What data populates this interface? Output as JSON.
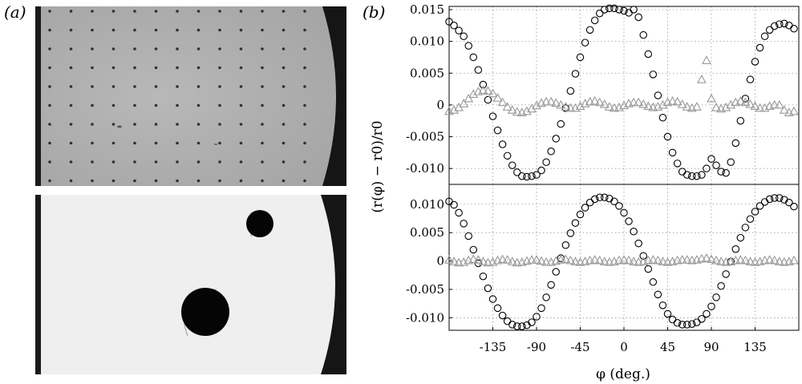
{
  "figure": {
    "panel_a_label": "(a)",
    "panel_b_label": "(b)"
  },
  "panel_a": {
    "top_image": "photograph of a square grid of small dark dots on a grey plate, with a dark curved edge at the right",
    "bottom_image": "photograph of a white plate with one small and one large black disk and a dark curved edge at the right"
  },
  "chart_data": {
    "type": "scatter",
    "ylabel": "(r(φ) − r0)/r0",
    "xlabel": "φ (deg.)",
    "x_ticks": [
      "-135",
      "-90",
      "-45",
      "0",
      "45",
      "90",
      "135"
    ],
    "x_tick_values": [
      -135,
      -90,
      -45,
      0,
      45,
      90,
      135
    ],
    "xlim": [
      -180,
      180
    ],
    "grid": true,
    "subplots": [
      {
        "position": "upper",
        "ylim": [
          -0.0125,
          0.0155
        ],
        "y_ticks": [
          "0.015",
          "0.010",
          "0.005",
          "0",
          "-0.005",
          "-0.010"
        ],
        "y_tick_values": [
          0.015,
          0.01,
          0.005,
          0,
          -0.005,
          -0.01
        ],
        "series": [
          {
            "marker": "circle",
            "color": "#000000",
            "x": [
              -180,
              -175,
              -170,
              -165,
              -160,
              -155,
              -150,
              -145,
              -140,
              -135,
              -130,
              -125,
              -120,
              -115,
              -110,
              -105,
              -100,
              -95,
              -90,
              -85,
              -80,
              -75,
              -70,
              -65,
              -60,
              -55,
              -50,
              -45,
              -40,
              -35,
              -30,
              -25,
              -20,
              -15,
              -10,
              -5,
              0,
              5,
              10,
              15,
              20,
              25,
              30,
              35,
              40,
              45,
              50,
              55,
              60,
              65,
              70,
              75,
              80,
              85,
              90,
              95,
              100,
              105,
              110,
              115,
              120,
              125,
              130,
              135,
              140,
              145,
              150,
              155,
              160,
              165,
              170,
              175
            ],
            "y": [
              0.0131,
              0.0125,
              0.0117,
              0.0108,
              0.0093,
              0.0075,
              0.0055,
              0.0032,
              0.0008,
              -0.0018,
              -0.004,
              -0.0062,
              -0.008,
              -0.0095,
              -0.0106,
              -0.0112,
              -0.0113,
              -0.0112,
              -0.011,
              -0.0103,
              -0.009,
              -0.0073,
              -0.0053,
              -0.003,
              -0.0005,
              0.0022,
              0.0049,
              0.0075,
              0.0098,
              0.0118,
              0.0133,
              0.0144,
              0.015,
              0.0152,
              0.0152,
              0.015,
              0.0148,
              0.0145,
              0.015,
              0.0138,
              0.011,
              0.008,
              0.0048,
              0.0015,
              -0.002,
              -0.005,
              -0.0075,
              -0.0092,
              -0.0105,
              -0.011,
              -0.0112,
              -0.0112,
              -0.011,
              -0.01,
              -0.0085,
              -0.0095,
              -0.0105,
              -0.0107,
              -0.009,
              -0.006,
              -0.0025,
              0.001,
              0.004,
              0.0068,
              0.009,
              0.0108,
              0.0118,
              0.0124,
              0.0127,
              0.0128,
              0.0125,
              0.012
            ]
          },
          {
            "marker": "triangle",
            "color": "#999999",
            "x": [
              -180,
              -175,
              -170,
              -165,
              -160,
              -155,
              -150,
              -145,
              -140,
              -135,
              -130,
              -125,
              -120,
              -115,
              -110,
              -105,
              -100,
              -95,
              -90,
              -85,
              -80,
              -75,
              -70,
              -65,
              -60,
              -55,
              -50,
              -45,
              -40,
              -35,
              -30,
              -25,
              -20,
              -15,
              -10,
              -5,
              0,
              5,
              10,
              15,
              20,
              25,
              30,
              35,
              40,
              45,
              50,
              55,
              60,
              65,
              70,
              75,
              80,
              85,
              90,
              95,
              100,
              105,
              110,
              115,
              120,
              125,
              130,
              135,
              140,
              145,
              150,
              155,
              160,
              165,
              170,
              175
            ],
            "y": [
              -0.001,
              -0.0008,
              -0.0004,
              0.0002,
              0.001,
              0.0017,
              0.0021,
              0.0023,
              0.0022,
              0.0018,
              0.0011,
              0.0004,
              -0.0003,
              -0.0008,
              -0.0011,
              -0.0012,
              -0.001,
              -0.0006,
              -0.0001,
              0.0003,
              0.0005,
              0.0005,
              0.0003,
              0.0,
              -0.0003,
              -0.0005,
              -0.0005,
              -0.0002,
              0.0002,
              0.0005,
              0.0006,
              0.0004,
              0.0001,
              -0.0003,
              -0.0005,
              -0.0004,
              -0.0001,
              0.0002,
              0.0004,
              0.0004,
              0.0001,
              -0.0002,
              -0.0004,
              -0.0003,
              0.0,
              0.0004,
              0.0006,
              0.0005,
              0.0001,
              -0.0003,
              -0.0005,
              -0.0003,
              0.004,
              0.007,
              0.001,
              -0.0004,
              -0.0006,
              -0.0004,
              0.0,
              0.0004,
              0.0006,
              0.0004,
              0.0001,
              -0.0002,
              -0.0005,
              -0.0005,
              -0.0002,
              0.0,
              0.0,
              -0.0008,
              -0.0012,
              -0.001
            ]
          }
        ]
      },
      {
        "position": "lower",
        "ylim": [
          -0.0122,
          0.0135
        ],
        "y_ticks": [
          "0.010",
          "0.005",
          "0",
          "-0.005",
          "-0.010"
        ],
        "y_tick_values": [
          0.01,
          0.005,
          0,
          -0.005,
          -0.01
        ],
        "series": [
          {
            "marker": "circle",
            "color": "#000000",
            "x": [
              -180,
              -175,
              -170,
              -165,
              -160,
              -155,
              -150,
              -145,
              -140,
              -135,
              -130,
              -125,
              -120,
              -115,
              -110,
              -105,
              -100,
              -95,
              -90,
              -85,
              -80,
              -75,
              -70,
              -65,
              -60,
              -55,
              -50,
              -45,
              -40,
              -35,
              -30,
              -25,
              -20,
              -15,
              -10,
              -5,
              0,
              5,
              10,
              15,
              20,
              25,
              30,
              35,
              40,
              45,
              50,
              55,
              60,
              65,
              70,
              75,
              80,
              85,
              90,
              95,
              100,
              105,
              110,
              115,
              120,
              125,
              130,
              135,
              140,
              145,
              150,
              155,
              160,
              165,
              170,
              175
            ],
            "y": [
              0.0105,
              0.0099,
              0.0085,
              0.0066,
              0.0044,
              0.002,
              -0.0004,
              -0.0027,
              -0.0048,
              -0.0067,
              -0.0083,
              -0.0096,
              -0.0106,
              -0.0112,
              -0.0115,
              -0.0115,
              -0.0113,
              -0.0108,
              -0.0098,
              -0.0083,
              -0.0064,
              -0.0042,
              -0.0019,
              0.0005,
              0.0028,
              0.0049,
              0.0067,
              0.0082,
              0.0094,
              0.0103,
              0.0109,
              0.0112,
              0.0112,
              0.011,
              0.0105,
              0.0097,
              0.0085,
              0.007,
              0.0052,
              0.0031,
              0.0009,
              -0.0014,
              -0.0037,
              -0.0059,
              -0.0078,
              -0.0093,
              -0.0103,
              -0.0109,
              -0.0112,
              -0.0112,
              -0.0111,
              -0.0108,
              -0.0102,
              -0.0093,
              -0.008,
              -0.0064,
              -0.0044,
              -0.0023,
              -0.0001,
              0.0021,
              0.0041,
              0.0059,
              0.0074,
              0.0087,
              0.0097,
              0.0104,
              0.0109,
              0.0111,
              0.0111,
              0.0108,
              0.0103,
              0.0096
            ]
          },
          {
            "marker": "triangle",
            "color": "#999999",
            "x": [
              -180,
              -175,
              -170,
              -165,
              -160,
              -155,
              -150,
              -145,
              -140,
              -135,
              -130,
              -125,
              -120,
              -115,
              -110,
              -105,
              -100,
              -95,
              -90,
              -85,
              -80,
              -75,
              -70,
              -65,
              -60,
              -55,
              -50,
              -45,
              -40,
              -35,
              -30,
              -25,
              -20,
              -15,
              -10,
              -5,
              0,
              5,
              10,
              15,
              20,
              25,
              30,
              35,
              40,
              45,
              50,
              55,
              60,
              65,
              70,
              75,
              80,
              85,
              90,
              95,
              100,
              105,
              110,
              115,
              120,
              125,
              130,
              135,
              140,
              145,
              150,
              155,
              160,
              165,
              170,
              175
            ],
            "y": [
              0.0002,
              -0.0001,
              -0.0003,
              -0.0002,
              0.0001,
              0.0003,
              0.0002,
              -0.0001,
              -0.0003,
              -0.0002,
              0.0001,
              0.0003,
              0.0002,
              -0.0001,
              -0.0003,
              -0.0002,
              0.0,
              0.0002,
              0.0002,
              0.0,
              -0.0002,
              -0.0002,
              0.0,
              0.0002,
              0.0003,
              0.0001,
              -0.0001,
              -0.0002,
              -0.0001,
              0.0001,
              0.0002,
              0.0001,
              -0.0001,
              -0.0002,
              -0.0001,
              0.0001,
              0.0002,
              0.0001,
              -0.0001,
              -0.0002,
              -0.0001,
              0.0001,
              0.0002,
              0.0001,
              -0.0001,
              -0.0002,
              -0.0001,
              0.0001,
              0.0002,
              0.0002,
              0.0001,
              0.0002,
              0.0004,
              0.0005,
              0.0003,
              0.0001,
              -0.0001,
              -0.0002,
              -0.0001,
              0.0001,
              0.0002,
              0.0001,
              -0.0001,
              -0.0002,
              -0.0001,
              0.0001,
              0.0002,
              0.0001,
              -0.0001,
              -0.0002,
              -0.0001,
              0.0001
            ]
          }
        ]
      }
    ]
  }
}
